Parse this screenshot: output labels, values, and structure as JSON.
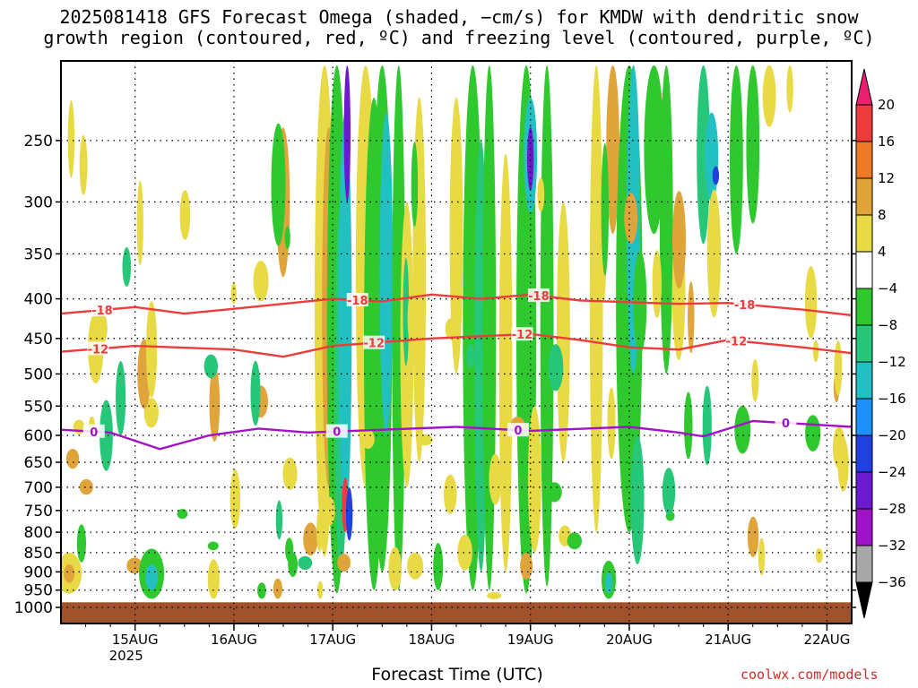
{
  "title_line1": "2025081418 GFS Forecast Omega (shaded, −cm/s) for KMDW with dendritic snow",
  "title_line2": "growth region (contoured, red, ºC) and freezing level (contoured, purple, ºC)",
  "credit": "coolwx.com/models",
  "chart_data": {
    "type": "heatmap",
    "title": "2025081418 GFS Forecast Omega (shaded, −cm/s) for KMDW with dendritic snow growth region (contoured, red, ºC) and freezing level (contoured, purple, ºC)",
    "xlabel": "Forecast Time (UTC)",
    "ylabel": "",
    "y_scale": "log-pressure",
    "y_reversed": true,
    "ylim": [
      1000,
      200
    ],
    "yticks": [
      250,
      300,
      350,
      400,
      450,
      500,
      550,
      600,
      650,
      700,
      750,
      800,
      850,
      900,
      950,
      1000
    ],
    "xlim_hours": [
      -12,
      180
    ],
    "xticks": [
      {
        "label": "15AUG",
        "sublabel": "2025",
        "hour": 6
      },
      {
        "label": "16AUG",
        "hour": 30
      },
      {
        "label": "17AUG",
        "hour": 54
      },
      {
        "label": "18AUG",
        "hour": 78
      },
      {
        "label": "19AUG",
        "hour": 102
      },
      {
        "label": "20AUG",
        "hour": 126
      },
      {
        "label": "21AUG",
        "hour": 150
      },
      {
        "label": "22AUG",
        "hour": 174
      }
    ],
    "grid": true,
    "colorbar": {
      "levels": [
        20,
        16,
        12,
        8,
        4,
        -4,
        -8,
        -12,
        -16,
        -20,
        -24,
        -28,
        -32,
        -36
      ],
      "colors": [
        "#e8206e",
        "#ee3b3b",
        "#ee7a26",
        "#e0a53a",
        "#e8da44",
        "#ffffff",
        "#2fc92f",
        "#27c77a",
        "#22c0c0",
        "#1e90ff",
        "#2040e0",
        "#6a1bd0",
        "#a012c8",
        "#a8a8a8",
        "#000000"
      ]
    },
    "contours": [
      {
        "label": "-18",
        "color": "#ee3b3b",
        "points": [
          [
            -12,
            418
          ],
          [
            6,
            410
          ],
          [
            18,
            418
          ],
          [
            30,
            412
          ],
          [
            54,
            400
          ],
          [
            66,
            403
          ],
          [
            78,
            395
          ],
          [
            90,
            400
          ],
          [
            102,
            395
          ],
          [
            114,
            402
          ],
          [
            138,
            406
          ],
          [
            150,
            405
          ],
          [
            168,
            413
          ],
          [
            180,
            420
          ]
        ],
        "label_hours": [
          -2,
          60,
          104,
          154
        ]
      },
      {
        "label": "-12",
        "color": "#ee3b3b",
        "points": [
          [
            -12,
            468
          ],
          [
            6,
            460
          ],
          [
            30,
            465
          ],
          [
            42,
            475
          ],
          [
            54,
            460
          ],
          [
            78,
            450
          ],
          [
            102,
            444
          ],
          [
            114,
            452
          ],
          [
            126,
            462
          ],
          [
            138,
            465
          ],
          [
            150,
            452
          ],
          [
            168,
            462
          ],
          [
            180,
            470
          ]
        ],
        "label_hours": [
          -3,
          64,
          100,
          152
        ]
      },
      {
        "label": "0",
        "color": "#a412c8",
        "points": [
          [
            -12,
            590
          ],
          [
            0,
            595
          ],
          [
            12,
            625
          ],
          [
            24,
            600
          ],
          [
            36,
            588
          ],
          [
            48,
            595
          ],
          [
            66,
            590
          ],
          [
            84,
            585
          ],
          [
            102,
            592
          ],
          [
            126,
            585
          ],
          [
            138,
            595
          ],
          [
            144,
            602
          ],
          [
            156,
            575
          ],
          [
            168,
            580
          ],
          [
            180,
            585
          ]
        ],
        "label_hours": [
          -4,
          55,
          99,
          164
        ]
      }
    ],
    "terrain": {
      "color": "#a0522d",
      "top_pressure": 985
    }
  }
}
